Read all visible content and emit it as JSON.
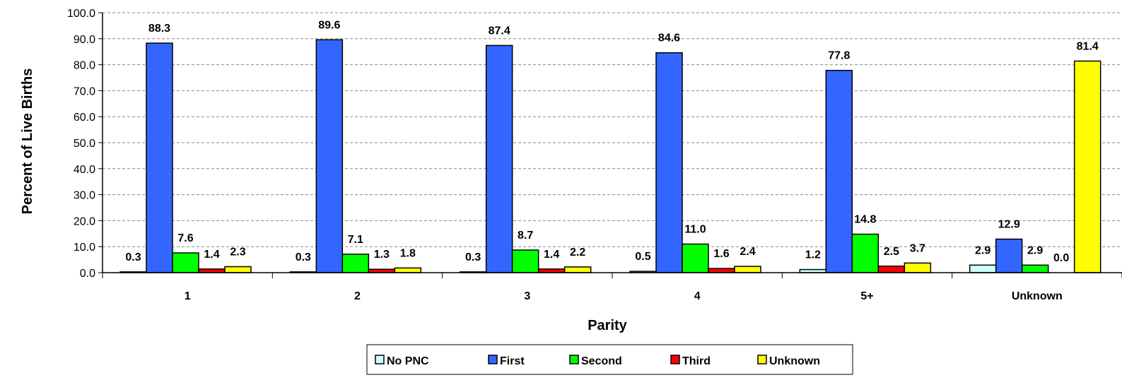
{
  "chart_data": {
    "type": "bar",
    "xlabel": "Parity",
    "ylabel": "Percent of Live Births",
    "ylim": [
      0,
      100
    ],
    "yticks": [
      "0.0",
      "10.0",
      "20.0",
      "30.0",
      "40.0",
      "50.0",
      "60.0",
      "70.0",
      "80.0",
      "90.0",
      "100.0"
    ],
    "grid": "horizontal dashed",
    "legend_position": "bottom",
    "categories": [
      "1",
      "2",
      "3",
      "4",
      "5+",
      "Unknown"
    ],
    "series": [
      {
        "name": "No PNC",
        "color": "#ccffff",
        "values": [
          0.3,
          0.3,
          0.3,
          0.5,
          1.2,
          2.9
        ],
        "labels": [
          "0.3",
          "0.3",
          "0.3",
          "0.5",
          "1.2",
          "2.9"
        ]
      },
      {
        "name": "First",
        "color": "#3366ff",
        "values": [
          88.3,
          89.6,
          87.4,
          84.6,
          77.8,
          12.9
        ],
        "labels": [
          "88.3",
          "89.6",
          "87.4",
          "84.6",
          "77.8",
          "12.9"
        ]
      },
      {
        "name": "Second",
        "color": "#00ff00",
        "values": [
          7.6,
          7.1,
          8.7,
          11.0,
          14.8,
          2.9
        ],
        "labels": [
          "7.6",
          "7.1",
          "8.7",
          "11.0",
          "14.8",
          "2.9"
        ]
      },
      {
        "name": "Third",
        "color": "#ff0000",
        "values": [
          1.4,
          1.3,
          1.4,
          1.6,
          2.5,
          0.0
        ],
        "labels": [
          "1.4",
          "1.3",
          "1.4",
          "1.6",
          "2.5",
          "0.0"
        ]
      },
      {
        "name": "Unknown",
        "color": "#ffff00",
        "values": [
          2.3,
          1.8,
          2.2,
          2.4,
          3.7,
          81.4
        ],
        "labels": [
          "2.3",
          "1.8",
          "2.2",
          "2.4",
          "3.7",
          "81.4"
        ]
      }
    ]
  }
}
